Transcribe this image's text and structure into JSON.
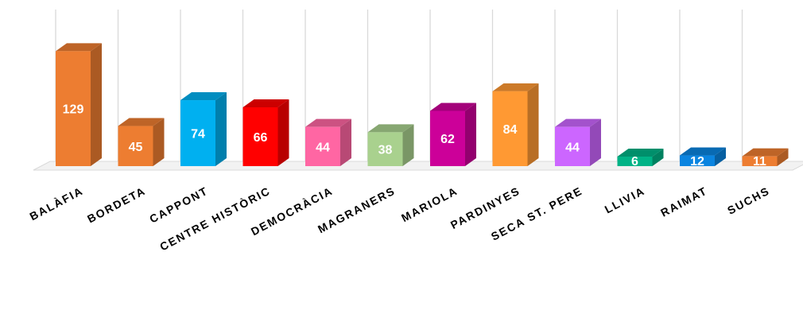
{
  "chart_data": {
    "type": "bar",
    "categories": [
      "BALÀFIA",
      "BORDETA",
      "CAPPONT",
      "CENTRE HISTÒRIC",
      "DEMOCRÀCIA",
      "MAGRANERS",
      "MARIOLA",
      "PARDINYES",
      "SECA ST. PERE",
      "LLIVIA",
      "RAIMAT",
      "SUCHS"
    ],
    "values": [
      129,
      45,
      74,
      66,
      44,
      38,
      62,
      84,
      44,
      6,
      12,
      11
    ],
    "colors": [
      "#ED7D31",
      "#ED7D31",
      "#00B0F0",
      "#FF0000",
      "#FF66A3",
      "#A9D18E",
      "#CC0099",
      "#FF9933",
      "#CC66FF",
      "#00B386",
      "#0A84E0",
      "#ED7D31"
    ],
    "title": "",
    "xlabel": "",
    "ylabel": "",
    "ylim": [
      0,
      165
    ],
    "grid": "vertical gridlines",
    "legend": "none",
    "data_labels": true,
    "style": "3d-column"
  }
}
